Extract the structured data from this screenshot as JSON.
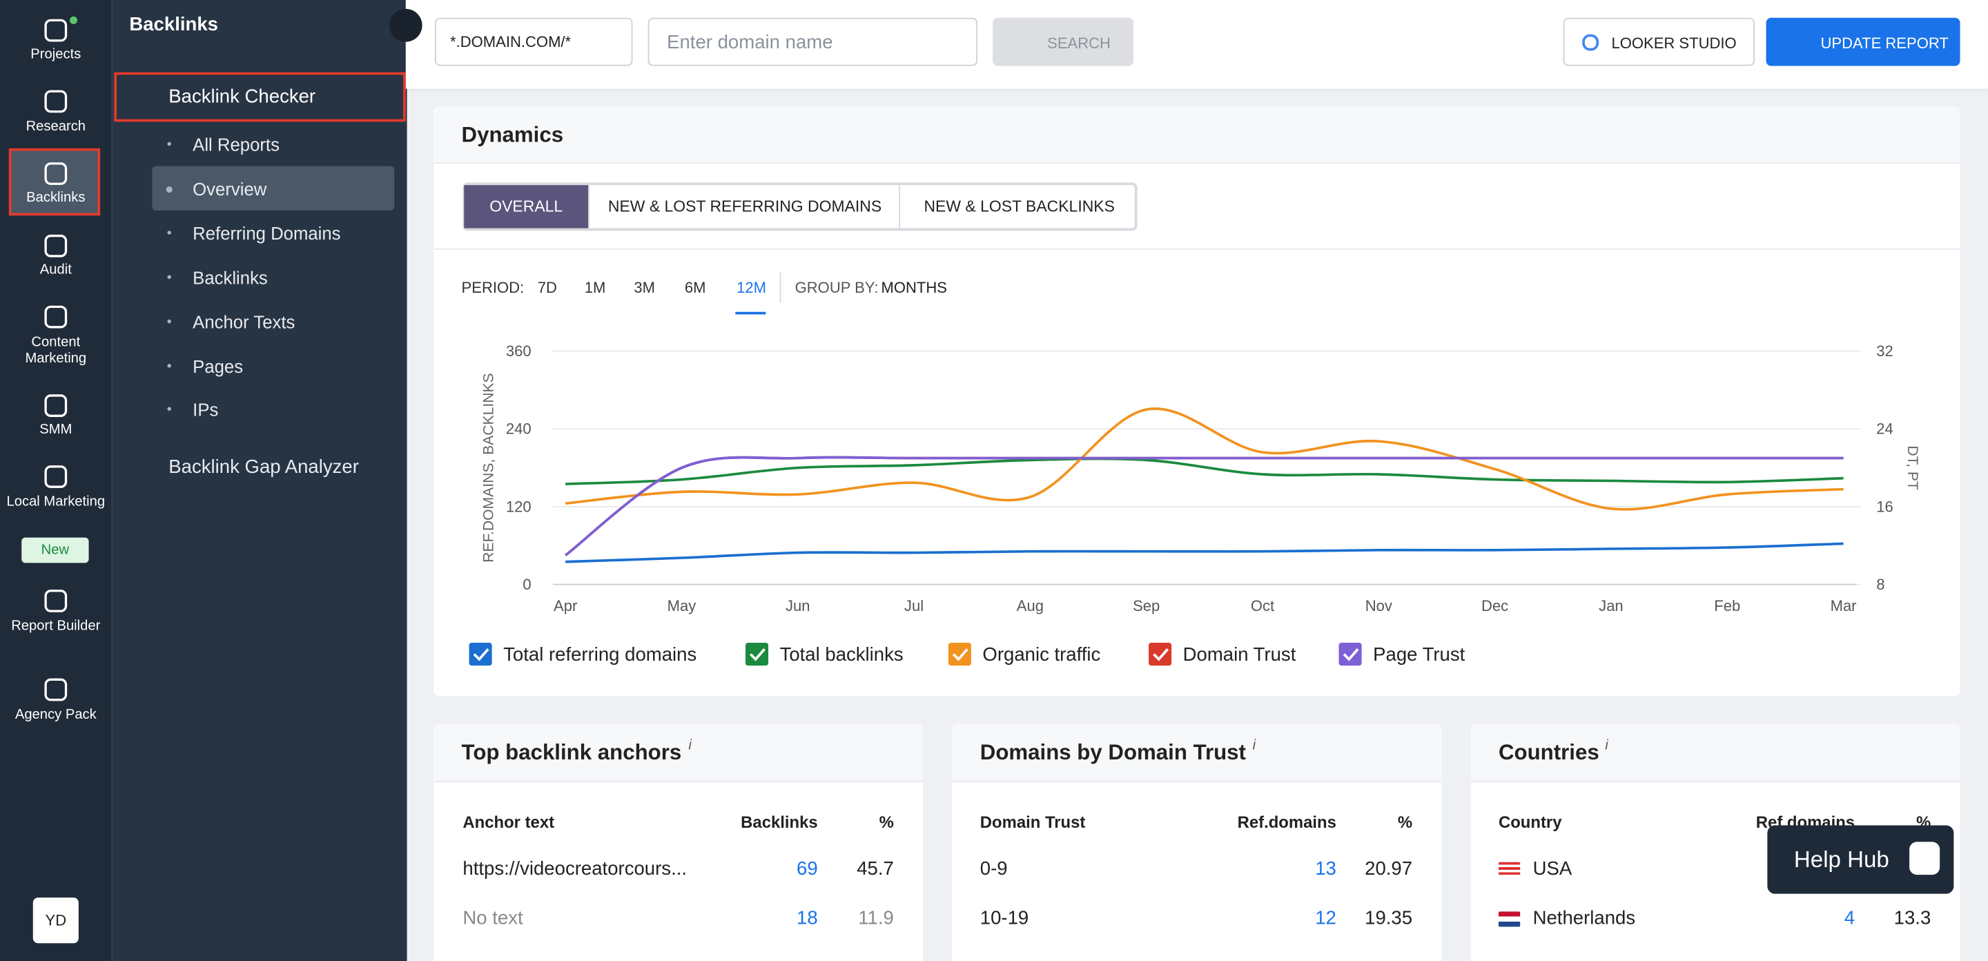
{
  "rail": {
    "items": [
      {
        "label": "Projects"
      },
      {
        "label": "Research"
      },
      {
        "label": "Backlinks"
      },
      {
        "label": "Audit"
      },
      {
        "label": "Content Marketing"
      },
      {
        "label": "SMM"
      },
      {
        "label": "Local Marketing",
        "badge": "New"
      },
      {
        "label": "Report Builder"
      },
      {
        "label": "Agency Pack"
      }
    ],
    "avatar": "YD"
  },
  "nav": {
    "title": "Backlinks",
    "section": "Backlink Checker",
    "items": [
      "All Reports",
      "Overview",
      "Referring Domains",
      "Backlinks",
      "Anchor Texts",
      "Pages",
      "IPs"
    ],
    "other": "Backlink Gap Analyzer"
  },
  "toolbar": {
    "scope": "*.DOMAIN.COM/*",
    "placeholder": "Enter domain name",
    "search": "SEARCH",
    "looker": "LOOKER STUDIO",
    "update": "UPDATE REPORT"
  },
  "dynamics": {
    "title": "Dynamics",
    "tabs": [
      "OVERALL",
      "NEW & LOST REFERRING DOMAINS",
      "NEW & LOST BACKLINKS"
    ],
    "period_label": "PERIOD:",
    "periods": [
      "7D",
      "1M",
      "3M",
      "6M",
      "12M"
    ],
    "group_label": "GROUP BY:",
    "group": "MONTHS"
  },
  "chart": {
    "type": "line",
    "ylabel": "REF.DOMAINS, BACKLINKS",
    "y2label": "DT, PT",
    "categories": [
      "Apr",
      "May",
      "Jun",
      "Jul",
      "Aug",
      "Sep",
      "Oct",
      "Nov",
      "Dec",
      "Jan",
      "Feb",
      "Mar"
    ],
    "ylim": [
      0,
      360
    ],
    "yticks": [
      0,
      120,
      240,
      360
    ],
    "y2lim": [
      8,
      32
    ],
    "y2ticks": [
      8,
      16,
      24,
      32
    ],
    "grid": true,
    "series": [
      {
        "name": "Total referring domains",
        "color": "#1a6fd0",
        "values": [
          35,
          41,
          49,
          49,
          51,
          51,
          51,
          53,
          53,
          55,
          57,
          63
        ]
      },
      {
        "name": "Total backlinks",
        "color": "#1b8a3e",
        "values": [
          155,
          162,
          180,
          184,
          192,
          192,
          170,
          170,
          162,
          160,
          158,
          164
        ]
      },
      {
        "name": "Organic traffic",
        "color": "#f2921e",
        "values": [
          125,
          143,
          139,
          157,
          135,
          270,
          204,
          221,
          178,
          117,
          139,
          147
        ]
      },
      {
        "name": "Domain Trust",
        "color": "#d93a2b",
        "axis": "y2",
        "values": [
          11,
          20,
          21,
          21,
          21,
          21,
          21,
          21,
          21,
          21,
          21,
          21
        ]
      },
      {
        "name": "Page Trust",
        "color": "#7d5fd6",
        "axis": "y2",
        "values": [
          11,
          20,
          21,
          21,
          21,
          21,
          21,
          21,
          21,
          21,
          21,
          21
        ]
      }
    ]
  },
  "anchors": {
    "title": "Top backlink anchors",
    "info": "i",
    "headers": [
      "Anchor text",
      "Backlinks",
      "%"
    ],
    "rows": [
      [
        "https://videocreatorcours...",
        "69",
        "45.7"
      ],
      [
        "No text",
        "18",
        "11.9"
      ]
    ]
  },
  "domain_trust": {
    "title": "Domains by Domain Trust",
    "info": "i",
    "headers": [
      "Domain Trust",
      "Ref.domains",
      "%"
    ],
    "rows": [
      [
        "0-9",
        "13",
        "20.97"
      ],
      [
        "10-19",
        "12",
        "19.35"
      ]
    ]
  },
  "countries": {
    "title": "Countries",
    "info": "i",
    "headers": [
      "Country",
      "Ref.domains",
      "%"
    ],
    "rows": [
      [
        "USA"
      ],
      [
        "Netherlands",
        "4",
        "13.3"
      ]
    ]
  },
  "help": "Help Hub"
}
